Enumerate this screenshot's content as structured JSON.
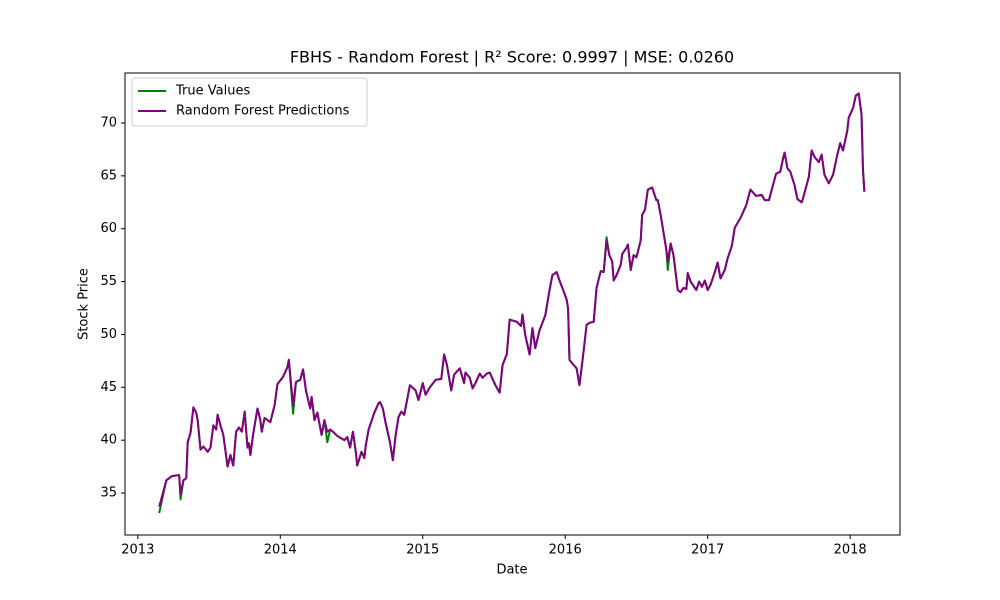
{
  "chart_data": {
    "type": "line",
    "title": "FBHS - Random Forest | R² Score: 0.9997 | MSE: 0.0260",
    "x_label": "Date",
    "y_label": "Stock Price",
    "legend": "upper left",
    "grid": false,
    "xlim": [
      2012.91,
      2018.35
    ],
    "ylim": [
      31.03,
      74.73
    ],
    "xticks": [
      2013,
      2014,
      2015,
      2016,
      2017,
      2018
    ],
    "yticks": [
      35,
      40,
      45,
      50,
      55,
      60,
      65,
      70
    ],
    "x": [
      2013.15,
      2013.2,
      2013.24,
      2013.29,
      2013.3,
      2013.32,
      2013.34,
      2013.35,
      2013.37,
      2013.39,
      2013.41,
      2013.42,
      2013.44,
      2013.46,
      2013.49,
      2013.51,
      2013.53,
      2013.55,
      2013.56,
      2013.58,
      2013.6,
      2013.63,
      2013.65,
      2013.67,
      2013.69,
      2013.71,
      2013.73,
      2013.75,
      2013.77,
      2013.78,
      2013.79,
      2013.81,
      2013.84,
      2013.86,
      2013.87,
      2013.89,
      2013.93,
      2013.96,
      2013.98,
      2014.02,
      2014.05,
      2014.06,
      2014.09,
      2014.11,
      2014.14,
      2014.16,
      2014.18,
      2014.21,
      2014.22,
      2014.24,
      2014.26,
      2014.29,
      2014.31,
      2014.33,
      2014.35,
      2014.37,
      2014.4,
      2014.45,
      2014.47,
      2014.49,
      2014.51,
      2014.53,
      2014.54,
      2014.57,
      2014.59,
      2014.6,
      2014.62,
      2014.66,
      2014.69,
      2014.7,
      2014.72,
      2014.74,
      2014.77,
      2014.79,
      2014.81,
      2014.83,
      2014.85,
      2014.87,
      2014.91,
      2014.95,
      2014.97,
      2015.0,
      2015.02,
      2015.05,
      2015.09,
      2015.13,
      2015.15,
      2015.17,
      2015.2,
      2015.22,
      2015.26,
      2015.29,
      2015.3,
      2015.33,
      2015.35,
      2015.37,
      2015.4,
      2015.42,
      2015.45,
      2015.47,
      2015.51,
      2015.54,
      2015.56,
      2015.58,
      2015.59,
      2015.61,
      2015.66,
      2015.69,
      2015.7,
      2015.72,
      2015.75,
      2015.77,
      2015.79,
      2015.82,
      2015.86,
      2015.89,
      2015.91,
      2015.94,
      2015.95,
      2015.96,
      2015.98,
      2016.01,
      2016.02,
      2016.03,
      2016.06,
      2016.08,
      2016.1,
      2016.11,
      2016.13,
      2016.15,
      2016.17,
      2016.2,
      2016.22,
      2016.24,
      2016.25,
      2016.27,
      2016.29,
      2016.31,
      2016.33,
      2016.34,
      2016.36,
      2016.39,
      2016.4,
      2016.43,
      2016.44,
      2016.46,
      2016.48,
      2016.5,
      2016.53,
      2016.54,
      2016.56,
      2016.58,
      2016.61,
      2016.64,
      2016.65,
      2016.67,
      2016.71,
      2016.72,
      2016.74,
      2016.76,
      2016.79,
      2016.81,
      2016.83,
      2016.85,
      2016.86,
      2016.88,
      2016.92,
      2016.94,
      2016.96,
      2016.98,
      2017.0,
      2017.02,
      2017.05,
      2017.07,
      2017.09,
      2017.12,
      2017.14,
      2017.17,
      2017.19,
      2017.23,
      2017.27,
      2017.3,
      2017.34,
      2017.38,
      2017.4,
      2017.43,
      2017.48,
      2017.51,
      2017.53,
      2017.54,
      2017.56,
      2017.58,
      2017.61,
      2017.63,
      2017.66,
      2017.67,
      2017.71,
      2017.73,
      2017.75,
      2017.78,
      2017.8,
      2017.82,
      2017.85,
      2017.88,
      2017.91,
      2017.93,
      2017.95,
      2017.98,
      2017.99,
      2018.02,
      2018.04,
      2018.06,
      2018.08,
      2018.09,
      2018.1
    ],
    "series": [
      {
        "name": "True Values",
        "color": "#008000",
        "values": [
          33.1,
          36.2,
          36.6,
          36.7,
          34.4,
          36.2,
          36.4,
          39.8,
          40.7,
          43.1,
          42.6,
          41.9,
          39.1,
          39.4,
          38.9,
          39.3,
          41.4,
          41.0,
          42.4,
          41.4,
          40.5,
          37.5,
          38.6,
          37.6,
          40.8,
          41.2,
          40.8,
          42.7,
          39.3,
          39.7,
          38.6,
          40.6,
          43.0,
          41.9,
          40.8,
          42.1,
          41.7,
          43.3,
          45.3,
          46.0,
          46.9,
          47.6,
          42.5,
          45.5,
          45.7,
          46.7,
          44.7,
          43.0,
          44.1,
          41.9,
          42.6,
          40.5,
          41.9,
          39.8,
          41.0,
          40.8,
          40.4,
          40.0,
          40.3,
          39.3,
          40.8,
          38.9,
          37.6,
          38.9,
          38.3,
          39.5,
          41.0,
          42.6,
          43.5,
          43.6,
          43.0,
          41.6,
          39.8,
          38.1,
          40.5,
          42.2,
          42.7,
          42.4,
          45.2,
          44.7,
          43.8,
          45.4,
          44.3,
          45.0,
          45.7,
          45.8,
          48.1,
          47.1,
          44.7,
          46.2,
          46.8,
          45.4,
          46.4,
          45.9,
          44.9,
          45.4,
          46.3,
          45.9,
          46.3,
          46.4,
          45.2,
          44.5,
          47.1,
          47.8,
          48.1,
          51.4,
          51.2,
          50.8,
          51.9,
          49.9,
          48.1,
          50.6,
          48.7,
          50.4,
          51.8,
          54.2,
          55.6,
          55.9,
          55.5,
          55.1,
          54.4,
          53.3,
          52.5,
          47.6,
          47.1,
          46.8,
          45.2,
          46.3,
          48.5,
          50.9,
          51.1,
          51.2,
          54.4,
          55.5,
          56.0,
          55.9,
          59.2,
          57.5,
          56.9,
          55.1,
          55.6,
          56.6,
          57.6,
          58.2,
          58.5,
          56.1,
          57.5,
          57.3,
          58.9,
          61.3,
          61.8,
          63.7,
          63.9,
          62.7,
          62.7,
          61.3,
          58.0,
          56.1,
          58.6,
          57.5,
          54.2,
          54.0,
          54.4,
          54.3,
          55.8,
          55.0,
          54.2,
          55.0,
          54.5,
          55.1,
          54.2,
          54.7,
          55.9,
          56.8,
          55.3,
          56.1,
          57.2,
          58.4,
          60.1,
          61.0,
          62.2,
          63.7,
          63.1,
          63.2,
          62.7,
          62.7,
          65.2,
          65.4,
          66.7,
          67.2,
          65.7,
          65.4,
          64.1,
          62.8,
          62.5,
          62.9,
          64.9,
          67.4,
          66.8,
          66.3,
          67.0,
          65.1,
          64.3,
          65.1,
          67.0,
          68.1,
          67.4,
          69.3,
          70.5,
          71.4,
          72.6,
          72.8,
          70.8,
          65.6,
          63.5
        ]
      },
      {
        "name": "Random Forest Predictions",
        "color": "#800080",
        "values": [
          33.7,
          36.2,
          36.6,
          36.7,
          34.9,
          36.2,
          36.4,
          39.8,
          40.7,
          43.1,
          42.6,
          41.9,
          39.1,
          39.4,
          38.9,
          39.3,
          41.4,
          41.0,
          42.4,
          41.4,
          40.5,
          37.5,
          38.6,
          37.6,
          40.8,
          41.2,
          40.8,
          42.7,
          39.3,
          39.7,
          38.6,
          40.6,
          43.0,
          41.9,
          40.8,
          42.1,
          41.7,
          43.3,
          45.3,
          46.0,
          46.9,
          47.6,
          43.3,
          45.5,
          45.7,
          46.7,
          44.7,
          43.0,
          44.1,
          41.9,
          42.6,
          40.5,
          41.9,
          40.8,
          41.0,
          40.8,
          40.4,
          40.0,
          40.3,
          39.3,
          40.8,
          38.9,
          37.6,
          38.9,
          38.3,
          39.5,
          41.0,
          42.6,
          43.5,
          43.6,
          43.0,
          41.6,
          39.8,
          38.1,
          40.5,
          42.2,
          42.7,
          42.4,
          45.2,
          44.7,
          43.8,
          45.4,
          44.3,
          45.0,
          45.7,
          45.8,
          48.1,
          47.1,
          44.7,
          46.2,
          46.8,
          45.4,
          46.4,
          45.9,
          44.9,
          45.4,
          46.3,
          45.9,
          46.3,
          46.4,
          45.2,
          44.5,
          47.1,
          47.8,
          48.1,
          51.4,
          51.2,
          50.8,
          51.9,
          49.9,
          48.1,
          50.6,
          48.7,
          50.4,
          51.8,
          54.2,
          55.6,
          55.9,
          55.5,
          55.1,
          54.4,
          53.3,
          52.5,
          47.6,
          47.1,
          46.8,
          45.2,
          46.3,
          48.5,
          50.9,
          51.1,
          51.2,
          54.4,
          55.5,
          56.0,
          55.9,
          58.8,
          57.5,
          56.9,
          55.1,
          55.6,
          56.6,
          57.6,
          58.2,
          58.5,
          56.1,
          57.5,
          57.3,
          58.9,
          61.3,
          61.8,
          63.7,
          63.9,
          62.7,
          62.7,
          61.3,
          58.0,
          56.9,
          58.6,
          57.5,
          54.2,
          54.0,
          54.4,
          54.3,
          55.8,
          55.0,
          54.2,
          55.0,
          54.5,
          55.1,
          54.2,
          54.7,
          55.9,
          56.8,
          55.3,
          56.1,
          57.2,
          58.4,
          60.1,
          61.0,
          62.2,
          63.7,
          63.1,
          63.2,
          62.7,
          62.7,
          65.2,
          65.4,
          66.7,
          67.2,
          65.7,
          65.4,
          64.1,
          62.8,
          62.5,
          62.9,
          64.9,
          67.4,
          66.8,
          66.3,
          67.0,
          65.1,
          64.3,
          65.1,
          67.0,
          68.1,
          67.4,
          69.3,
          70.5,
          71.4,
          72.6,
          72.8,
          70.8,
          65.6,
          63.5
        ]
      }
    ]
  }
}
